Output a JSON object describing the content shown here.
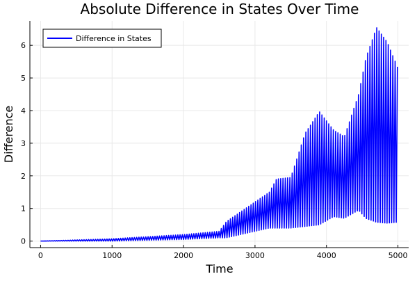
{
  "chart_data": {
    "type": "line",
    "title": "Absolute Difference in States Over Time",
    "xlabel": "Time",
    "ylabel": "Difference",
    "xlim": [
      -150,
      5150
    ],
    "ylim": [
      -0.2,
      6.75
    ],
    "xticks": [
      0,
      1000,
      2000,
      3000,
      4000,
      5000
    ],
    "xtick_labels": [
      "0",
      "1000",
      "2000",
      "3000",
      "4000",
      "5000"
    ],
    "yticks": [
      0,
      1,
      2,
      3,
      4,
      5,
      6
    ],
    "ytick_labels": [
      "0",
      "1",
      "2",
      "3",
      "4",
      "5",
      "6"
    ],
    "grid": true,
    "legend": {
      "position": "top-left",
      "entries": [
        "Difference in States"
      ]
    },
    "series": [
      {
        "name": "Difference in States",
        "color": "#0000ff",
        "oscillation_period": 32,
        "envelope": {
          "t": [
            0,
            1000,
            2000,
            2500,
            2600,
            3000,
            3200,
            3300,
            3500,
            3700,
            3900,
            4100,
            4250,
            4450,
            4550,
            4700,
            4850,
            5000
          ],
          "upper": [
            0,
            0.07,
            0.2,
            0.3,
            0.6,
            1.2,
            1.5,
            1.9,
            1.95,
            3.3,
            3.97,
            3.4,
            3.2,
            4.5,
            5.6,
            6.55,
            6.1,
            5.3
          ],
          "lower": [
            0,
            0.0,
            0.05,
            0.1,
            0.1,
            0.3,
            0.4,
            0.4,
            0.4,
            0.45,
            0.5,
            0.75,
            0.7,
            0.95,
            0.7,
            0.58,
            0.55,
            0.58
          ]
        }
      }
    ]
  }
}
